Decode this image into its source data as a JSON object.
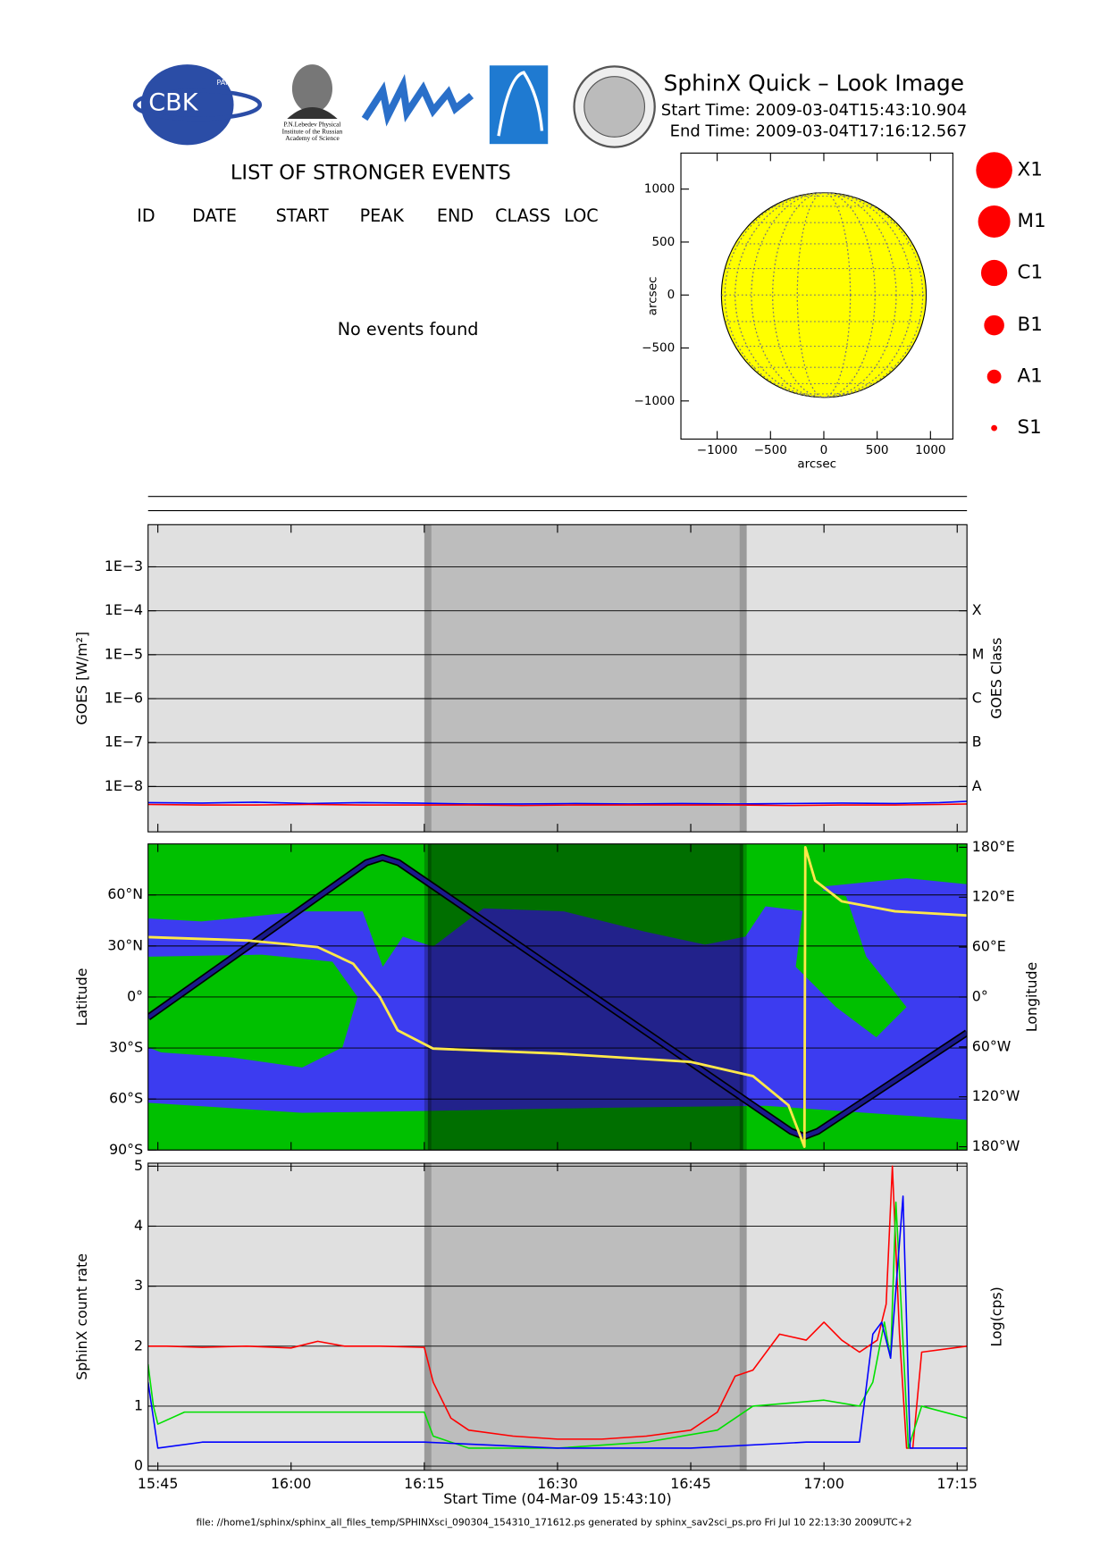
{
  "header": {
    "title": "SphinX Quick – Look Image",
    "start_time": "Start Time: 2009-03-04T15:43:10.904",
    "end_time": "End Time: 2009-03-04T17:16:12.567",
    "logo_text": "CBK",
    "logo_sub": "PAN",
    "lebedev_caption": [
      "P.N.Lebedev Physical",
      "Institute of the Russian",
      "Academy of Science"
    ]
  },
  "events": {
    "title": "LIST OF STRONGER EVENTS",
    "columns": [
      "ID",
      "DATE",
      "START",
      "PEAK",
      "END",
      "CLASS",
      "LOC"
    ],
    "message": "No events found"
  },
  "footer": "file: //home1/sphinx/sphinx_all_files_temp/SPHINXsci_090304_154310_171612.ps generated by sphinx_sav2sci_ps.pro Fri Jul 10 22:13:30 2009UTC+2",
  "chart_data": [
    {
      "type": "disk",
      "xlabel": "arcsec",
      "ylabel": "arcsec",
      "xlim": [
        -1340,
        1210
      ],
      "ylim": [
        -1360,
        1340
      ],
      "xticks": [
        {
          "value": -1000,
          "label": "−1000"
        },
        {
          "value": -500,
          "label": "−500"
        },
        0,
        500,
        1000
      ],
      "yticks": [
        {
          "value": -1000,
          "label": "−1000"
        },
        {
          "value": -500,
          "label": "−500"
        },
        0,
        500,
        1000
      ],
      "disk_radius": 960,
      "color": "#ffff00",
      "legend": {
        "labels": [
          "X1",
          "M1",
          "C1",
          "B1",
          "A1",
          "S1"
        ],
        "color": "#ff0000"
      }
    },
    {
      "type": "line",
      "log": true,
      "ylabel": "GOES [W/m²]",
      "y2label": "GOES Class",
      "xlim": [
        43.9,
        136.1
      ],
      "xticks": [
        45,
        60,
        75,
        90,
        105,
        120,
        135
      ],
      "ylim": [
        9.3e-10,
        0.0091
      ],
      "yticks": [
        {
          "value": 1e-08,
          "label": "1E−8"
        },
        {
          "value": 1e-07,
          "label": "1E−7"
        },
        {
          "value": 1e-06,
          "label": "1E−6"
        },
        {
          "value": 1e-05,
          "label": "1E−5"
        },
        {
          "value": 0.0001,
          "label": "1E−4"
        },
        {
          "value": 0.001,
          "label": "1E−3"
        }
      ],
      "y2ticks": [
        {
          "value": 1e-08,
          "label": "A"
        },
        {
          "value": 1e-07,
          "label": "B"
        },
        {
          "value": 1e-06,
          "label": "C"
        },
        {
          "value": 1e-05,
          "label": "M"
        },
        {
          "value": 0.0001,
          "label": "X"
        }
      ],
      "grid": true,
      "shaded": [
        75.4,
        110.9
      ],
      "series": [
        {
          "color": "#0000ff",
          "x": [
            43.9,
            50,
            56,
            62,
            68,
            74,
            80,
            86,
            92,
            98,
            104,
            110,
            116,
            122,
            128,
            133,
            136.1
          ],
          "values": [
            4.3e-09,
            4.2e-09,
            4.4e-09,
            4.1e-09,
            4.3e-09,
            4.2e-09,
            4e-09,
            4e-09,
            4.1e-09,
            4e-09,
            4.1e-09,
            4e-09,
            4.1e-09,
            4.2e-09,
            4.1e-09,
            4.3e-09,
            4.6e-09
          ]
        },
        {
          "color": "#ff0000",
          "x": [
            43.9,
            50,
            56,
            62,
            68,
            74,
            80,
            86,
            92,
            98,
            104,
            110,
            116,
            122,
            128,
            133,
            136.1
          ],
          "values": [
            3.9e-09,
            3.8e-09,
            3.8e-09,
            3.9e-09,
            3.8e-09,
            3.8e-09,
            3.8e-09,
            3.7e-09,
            3.8e-09,
            3.8e-09,
            3.8e-09,
            3.8e-09,
            3.7e-09,
            3.8e-09,
            3.8e-09,
            3.9e-09,
            4e-09
          ]
        }
      ]
    },
    {
      "type": "map",
      "ylabel": "Latitude",
      "y2label": "Longitude",
      "xlim": [
        43.9,
        136.1
      ],
      "xticks": [
        45,
        60,
        75,
        90,
        105,
        120,
        135
      ],
      "ylim": [
        -90,
        90
      ],
      "yticks": [
        {
          "value": -90,
          "label": "90°S"
        },
        {
          "value": -60,
          "label": "60°S"
        },
        {
          "value": -30,
          "label": "30°S"
        },
        {
          "value": 0,
          "label": "0°"
        },
        {
          "value": 30,
          "label": "30°N"
        },
        {
          "value": 60,
          "label": "60°N"
        }
      ],
      "y2lim": [
        -184,
        184
      ],
      "y2ticks": [
        {
          "value": -180,
          "label": "180°W"
        },
        {
          "value": -120,
          "label": "120°W"
        },
        {
          "value": -60,
          "label": "60°W"
        },
        {
          "value": 0,
          "label": "0°"
        },
        {
          "value": 60,
          "label": "60°E"
        },
        {
          "value": 120,
          "label": "120°E"
        },
        {
          "value": 180,
          "label": "180°E"
        }
      ],
      "grid": true,
      "shaded": [
        75.4,
        110.9
      ],
      "series": [
        {
          "color": "#1a1a8c",
          "x": [
            43.9,
            68.5,
            70.3,
            72.1,
            116.3,
            117.8,
            119.3,
            136.1
          ],
          "values": [
            -12,
            79,
            82,
            79,
            -79,
            -82,
            -79,
            -21
          ]
        },
        {
          "color": "#ffe84a",
          "axis": "y2",
          "x": [
            43.9,
            55,
            63,
            67,
            70,
            72,
            76,
            90,
            105,
            112,
            116,
            117.8,
            117.9,
            119,
            122,
            128,
            136.1
          ],
          "values": [
            72,
            68,
            60,
            40,
            0,
            -40,
            -62,
            -68,
            -78,
            -95,
            -130,
            -180,
            180,
            140,
            115,
            103,
            98
          ]
        }
      ]
    },
    {
      "type": "line",
      "xlabel": "Start Time (04-Mar-09 15:43:10)",
      "ylabel": "SphinX count rate",
      "y2label": "Log(cps)",
      "xlim": [
        43.9,
        136.1
      ],
      "xticks": [
        {
          "value": 45,
          "label": "15:45"
        },
        {
          "value": 60,
          "label": "16:00"
        },
        {
          "value": 75,
          "label": "16:15"
        },
        {
          "value": 90,
          "label": "16:30"
        },
        {
          "value": 105,
          "label": "16:45"
        },
        {
          "value": 120,
          "label": "17:00"
        },
        {
          "value": 135,
          "label": "17:15"
        }
      ],
      "ylim": [
        -0.07,
        5.05
      ],
      "yticks": [
        0,
        1,
        2,
        3,
        4,
        5
      ],
      "grid": true,
      "shaded": [
        75.4,
        110.9
      ],
      "series": [
        {
          "color": "#ff0000",
          "x": [
            43.9,
            46,
            50,
            55,
            60,
            63,
            66,
            70,
            75,
            76,
            78,
            80,
            85,
            90,
            95,
            100,
            105,
            108,
            110,
            112,
            115,
            118,
            120,
            122,
            124,
            126,
            127,
            127.7,
            128.5,
            129.3,
            130,
            131,
            136.1
          ],
          "values": [
            2.0,
            2.0,
            1.98,
            2.0,
            1.97,
            2.08,
            2.0,
            2.0,
            1.98,
            1.4,
            0.8,
            0.6,
            0.5,
            0.45,
            0.45,
            0.5,
            0.6,
            0.9,
            1.5,
            1.6,
            2.2,
            2.1,
            2.4,
            2.1,
            1.9,
            2.1,
            2.7,
            5.0,
            2.2,
            0.3,
            0.3,
            1.9,
            2.0
          ]
        },
        {
          "color": "#00e000",
          "x": [
            43.9,
            44.5,
            45,
            48,
            55,
            65,
            75,
            76,
            80,
            90,
            100,
            108,
            112,
            120,
            124,
            125.5,
            126.8,
            127.5,
            128.1,
            129.5,
            131,
            136.1
          ],
          "values": [
            1.7,
            1.0,
            0.7,
            0.9,
            0.9,
            0.9,
            0.9,
            0.5,
            0.3,
            0.3,
            0.4,
            0.6,
            1.0,
            1.1,
            1.0,
            1.4,
            2.4,
            1.8,
            4.4,
            0.3,
            1.0,
            0.8
          ]
        },
        {
          "color": "#0000ff",
          "x": [
            43.9,
            45,
            50,
            60,
            75,
            90,
            105,
            118,
            124,
            125.5,
            126.5,
            127.5,
            128.9,
            129.7,
            136.1
          ],
          "values": [
            1.4,
            0.3,
            0.4,
            0.4,
            0.4,
            0.3,
            0.3,
            0.4,
            0.4,
            2.2,
            2.4,
            1.8,
            4.5,
            0.3,
            0.3
          ]
        }
      ]
    }
  ]
}
